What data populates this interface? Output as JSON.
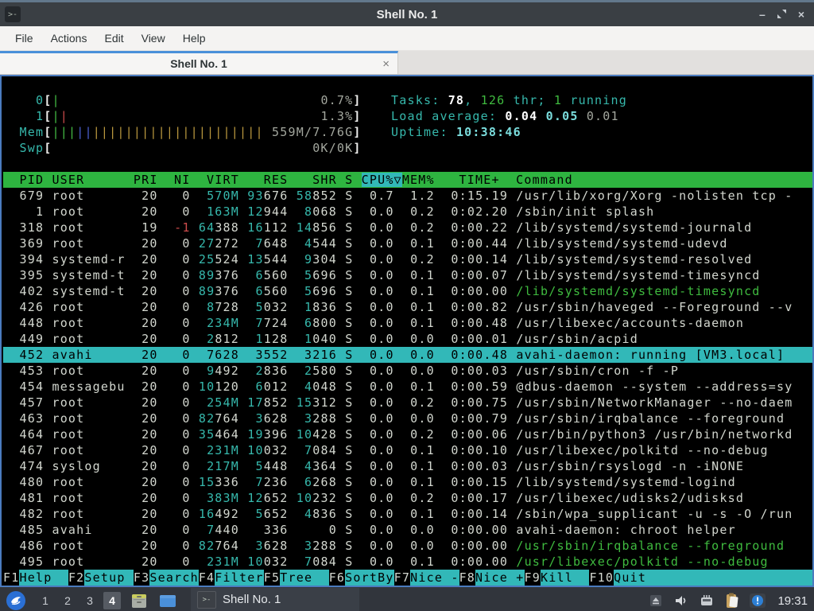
{
  "window": {
    "title": "Shell No. 1",
    "menu": [
      "File",
      "Actions",
      "Edit",
      "View",
      "Help"
    ],
    "tab_label": "Shell No. 1",
    "tab_close": "×",
    "controls": {
      "minimize": "–",
      "close": "×"
    }
  },
  "colors": {
    "accent_blue": "#4a90d9",
    "header_green": "#2eb440",
    "selection_cyan": "#32b8b8",
    "focus_border": "#4b7bbf"
  },
  "htop": {
    "meters": [
      {
        "label": "0",
        "bars": [
          [
            "mg",
            1
          ]
        ],
        "value": "0.7%"
      },
      {
        "label": "1",
        "bars": [
          [
            "mg",
            1
          ],
          [
            "mr",
            1
          ]
        ],
        "value": "1.3%"
      },
      {
        "label": "Mem",
        "bars": [
          [
            "mg",
            3
          ],
          [
            "mb",
            2
          ],
          [
            "my",
            21
          ]
        ],
        "value": "559M/7.76G"
      },
      {
        "label": "Swp",
        "bars": [],
        "value": "0K/0K"
      }
    ],
    "right_lines": [
      [
        {
          "t": "Tasks: ",
          "c": "teal"
        },
        {
          "t": "78",
          "c": "bw"
        },
        {
          "t": ", ",
          "c": "teal"
        },
        {
          "t": "126",
          "c": "g"
        },
        {
          "t": " thr; ",
          "c": "teal"
        },
        {
          "t": "1",
          "c": "g"
        },
        {
          "t": " running",
          "c": "teal"
        }
      ],
      [
        {
          "t": "Load average: ",
          "c": "teal"
        },
        {
          "t": "0.04 ",
          "c": "bw"
        },
        {
          "t": "0.05 ",
          "c": "bc"
        },
        {
          "t": "0.01",
          "c": "dim"
        }
      ],
      [
        {
          "t": "Uptime: ",
          "c": "teal"
        },
        {
          "t": "10:38:46",
          "c": "bc"
        }
      ]
    ],
    "table_header": {
      "pre": "  PID USER      PRI  NI  VIRT   RES   SHR S ",
      "sort": "CPU%▽",
      "post": "MEM%   TIME+  Command"
    },
    "rows": [
      {
        "pid": "679",
        "user": "root",
        "pri": "20",
        "ni": "0",
        "virt": "570M",
        "res": "93676",
        "shr": "58852",
        "s": "S",
        "cpu": "0.7",
        "mem": "1.2",
        "time": "0:15.19",
        "cmd": "/usr/lib/xorg/Xorg -nolisten tcp -"
      },
      {
        "pid": "1",
        "user": "root",
        "pri": "20",
        "ni": "0",
        "virt": "163M",
        "res": "12944",
        "shr": "8068",
        "s": "S",
        "cpu": "0.0",
        "mem": "0.2",
        "time": "0:02.20",
        "cmd": "/sbin/init splash"
      },
      {
        "pid": "318",
        "user": "root",
        "pri": "19",
        "ni": "-1",
        "virt": "64388",
        "res": "16112",
        "shr": "14856",
        "s": "S",
        "cpu": "0.0",
        "mem": "0.2",
        "time": "0:00.22",
        "cmd": "/lib/systemd/systemd-journald",
        "ni_red": true
      },
      {
        "pid": "369",
        "user": "root",
        "pri": "20",
        "ni": "0",
        "virt": "27272",
        "res": "7648",
        "shr": "4544",
        "s": "S",
        "cpu": "0.0",
        "mem": "0.1",
        "time": "0:00.44",
        "cmd": "/lib/systemd/systemd-udevd"
      },
      {
        "pid": "394",
        "user": "systemd-r",
        "pri": "20",
        "ni": "0",
        "virt": "25524",
        "res": "13544",
        "shr": "9304",
        "s": "S",
        "cpu": "0.0",
        "mem": "0.2",
        "time": "0:00.14",
        "cmd": "/lib/systemd/systemd-resolved"
      },
      {
        "pid": "395",
        "user": "systemd-t",
        "pri": "20",
        "ni": "0",
        "virt": "89376",
        "res": "6560",
        "shr": "5696",
        "s": "S",
        "cpu": "0.0",
        "mem": "0.1",
        "time": "0:00.07",
        "cmd": "/lib/systemd/systemd-timesyncd"
      },
      {
        "pid": "402",
        "user": "systemd-t",
        "pri": "20",
        "ni": "0",
        "virt": "89376",
        "res": "6560",
        "shr": "5696",
        "s": "S",
        "cpu": "0.0",
        "mem": "0.1",
        "time": "0:00.00",
        "cmd": "/lib/systemd/systemd-timesyncd",
        "green": true
      },
      {
        "pid": "426",
        "user": "root",
        "pri": "20",
        "ni": "0",
        "virt": "8728",
        "res": "5032",
        "shr": "1836",
        "s": "S",
        "cpu": "0.0",
        "mem": "0.1",
        "time": "0:00.82",
        "cmd": "/usr/sbin/haveged --Foreground --v"
      },
      {
        "pid": "448",
        "user": "root",
        "pri": "20",
        "ni": "0",
        "virt": "234M",
        "res": "7724",
        "shr": "6800",
        "s": "S",
        "cpu": "0.0",
        "mem": "0.1",
        "time": "0:00.48",
        "cmd": "/usr/libexec/accounts-daemon"
      },
      {
        "pid": "449",
        "user": "root",
        "pri": "20",
        "ni": "0",
        "virt": "2812",
        "res": "1128",
        "shr": "1040",
        "s": "S",
        "cpu": "0.0",
        "mem": "0.0",
        "time": "0:00.01",
        "cmd": "/usr/sbin/acpid"
      },
      {
        "pid": "452",
        "user": "avahi",
        "pri": "20",
        "ni": "0",
        "virt": "7628",
        "res": "3552",
        "shr": "3216",
        "s": "S",
        "cpu": "0.0",
        "mem": "0.0",
        "time": "0:00.48",
        "cmd": "avahi-daemon: running [VM3.local]",
        "selected": true
      },
      {
        "pid": "453",
        "user": "root",
        "pri": "20",
        "ni": "0",
        "virt": "9492",
        "res": "2836",
        "shr": "2580",
        "s": "S",
        "cpu": "0.0",
        "mem": "0.0",
        "time": "0:00.03",
        "cmd": "/usr/sbin/cron -f -P"
      },
      {
        "pid": "454",
        "user": "messagebu",
        "pri": "20",
        "ni": "0",
        "virt": "10120",
        "res": "6012",
        "shr": "4048",
        "s": "S",
        "cpu": "0.0",
        "mem": "0.1",
        "time": "0:00.59",
        "cmd": "@dbus-daemon --system --address=sy"
      },
      {
        "pid": "457",
        "user": "root",
        "pri": "20",
        "ni": "0",
        "virt": "254M",
        "res": "17852",
        "shr": "15312",
        "s": "S",
        "cpu": "0.0",
        "mem": "0.2",
        "time": "0:00.75",
        "cmd": "/usr/sbin/NetworkManager --no-daem"
      },
      {
        "pid": "463",
        "user": "root",
        "pri": "20",
        "ni": "0",
        "virt": "82764",
        "res": "3628",
        "shr": "3288",
        "s": "S",
        "cpu": "0.0",
        "mem": "0.0",
        "time": "0:00.79",
        "cmd": "/usr/sbin/irqbalance --foreground"
      },
      {
        "pid": "464",
        "user": "root",
        "pri": "20",
        "ni": "0",
        "virt": "35464",
        "res": "19396",
        "shr": "10428",
        "s": "S",
        "cpu": "0.0",
        "mem": "0.2",
        "time": "0:00.06",
        "cmd": "/usr/bin/python3 /usr/bin/networkd"
      },
      {
        "pid": "467",
        "user": "root",
        "pri": "20",
        "ni": "0",
        "virt": "231M",
        "res": "10032",
        "shr": "7084",
        "s": "S",
        "cpu": "0.0",
        "mem": "0.1",
        "time": "0:00.10",
        "cmd": "/usr/libexec/polkitd --no-debug"
      },
      {
        "pid": "474",
        "user": "syslog",
        "pri": "20",
        "ni": "0",
        "virt": "217M",
        "res": "5448",
        "shr": "4364",
        "s": "S",
        "cpu": "0.0",
        "mem": "0.1",
        "time": "0:00.03",
        "cmd": "/usr/sbin/rsyslogd -n -iNONE"
      },
      {
        "pid": "480",
        "user": "root",
        "pri": "20",
        "ni": "0",
        "virt": "15336",
        "res": "7236",
        "shr": "6268",
        "s": "S",
        "cpu": "0.0",
        "mem": "0.1",
        "time": "0:00.15",
        "cmd": "/lib/systemd/systemd-logind"
      },
      {
        "pid": "481",
        "user": "root",
        "pri": "20",
        "ni": "0",
        "virt": "383M",
        "res": "12652",
        "shr": "10232",
        "s": "S",
        "cpu": "0.0",
        "mem": "0.2",
        "time": "0:00.17",
        "cmd": "/usr/libexec/udisks2/udisksd"
      },
      {
        "pid": "482",
        "user": "root",
        "pri": "20",
        "ni": "0",
        "virt": "16492",
        "res": "5652",
        "shr": "4836",
        "s": "S",
        "cpu": "0.0",
        "mem": "0.1",
        "time": "0:00.14",
        "cmd": "/sbin/wpa_supplicant -u -s -O /run"
      },
      {
        "pid": "485",
        "user": "avahi",
        "pri": "20",
        "ni": "0",
        "virt": "7440",
        "res": "336",
        "shr": "0",
        "s": "S",
        "cpu": "0.0",
        "mem": "0.0",
        "time": "0:00.00",
        "cmd": "avahi-daemon: chroot helper"
      },
      {
        "pid": "486",
        "user": "root",
        "pri": "20",
        "ni": "0",
        "virt": "82764",
        "res": "3628",
        "shr": "3288",
        "s": "S",
        "cpu": "0.0",
        "mem": "0.0",
        "time": "0:00.00",
        "cmd": "/usr/sbin/irqbalance --foreground",
        "green": true
      },
      {
        "pid": "495",
        "user": "root",
        "pri": "20",
        "ni": "0",
        "virt": "231M",
        "res": "10032",
        "shr": "7084",
        "s": "S",
        "cpu": "0.0",
        "mem": "0.1",
        "time": "0:00.00",
        "cmd": "/usr/libexec/polkitd --no-debug",
        "green": true
      }
    ],
    "fkeys": [
      {
        "key": "F1",
        "label": "Help  "
      },
      {
        "key": "F2",
        "label": "Setup "
      },
      {
        "key": "F3",
        "label": "Search"
      },
      {
        "key": "F4",
        "label": "Filter"
      },
      {
        "key": "F5",
        "label": "Tree  "
      },
      {
        "key": "F6",
        "label": "SortBy"
      },
      {
        "key": "F7",
        "label": "Nice -"
      },
      {
        "key": "F8",
        "label": "Nice +"
      },
      {
        "key": "F9",
        "label": "Kill  "
      },
      {
        "key": "F10",
        "label": "Quit"
      }
    ]
  },
  "taskbar": {
    "workspaces": [
      "1",
      "2",
      "3",
      "4"
    ],
    "active_workspace": "4",
    "window_button_label": "Shell No. 1",
    "clock": "19:31"
  }
}
